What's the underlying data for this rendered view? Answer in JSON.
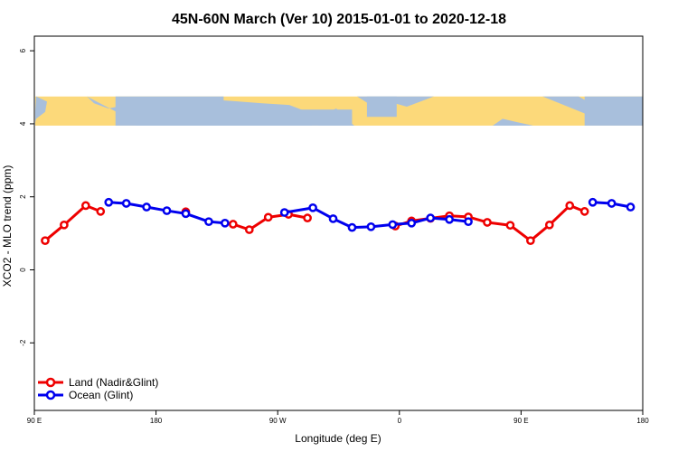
{
  "chart_data": {
    "type": "line",
    "title": "45N-60N March (Ver 10)   2015-01-01 to 2020-12-18",
    "xlabel": "Longitude (deg E)",
    "ylabel": "XCO2 - MLO trend (ppm)",
    "xlim": [
      90,
      540
    ],
    "ylim": [
      -3.85,
      6.4
    ],
    "x_ticks": [
      {
        "value": 90,
        "label": "90 E"
      },
      {
        "value": 180,
        "label": "180"
      },
      {
        "value": 270,
        "label": "90 W"
      },
      {
        "value": 360,
        "label": "0"
      },
      {
        "value": 450,
        "label": "90 E"
      },
      {
        "value": 540,
        "label": "180"
      }
    ],
    "y_ticks": [
      {
        "value": -2,
        "label": "-2"
      },
      {
        "value": 0,
        "label": "0"
      },
      {
        "value": 2,
        "label": "2"
      },
      {
        "value": 4,
        "label": "4"
      },
      {
        "value": 6,
        "label": "6"
      }
    ],
    "map_band": {
      "y_from": 3.95,
      "y_to": 4.75,
      "land_color": "#fcd97a",
      "ocean_color": "#a8bfdc"
    },
    "legend": {
      "position": "bottom-left"
    },
    "series": [
      {
        "name": "Land (Nadir&Glint)",
        "color": "#ee0000",
        "segments": [
          [
            [
              98,
              0.8
            ],
            [
              112,
              1.23
            ],
            [
              128,
              1.76
            ],
            [
              139,
              1.6
            ]
          ],
          [
            [
              202,
              1.59
            ]
          ],
          [
            [
              237,
              1.25
            ],
            [
              249,
              1.1
            ],
            [
              263,
              1.44
            ],
            [
              278,
              1.52
            ],
            [
              292,
              1.42
            ]
          ],
          [
            [
              357,
              1.2
            ],
            [
              369,
              1.34
            ],
            [
              383,
              1.41
            ],
            [
              397,
              1.48
            ],
            [
              411,
              1.45
            ],
            [
              425,
              1.3
            ],
            [
              442,
              1.22
            ],
            [
              457,
              0.8
            ],
            [
              471,
              1.23
            ],
            [
              486,
              1.76
            ],
            [
              497,
              1.6
            ]
          ]
        ]
      },
      {
        "name": "Ocean (Glint)",
        "color": "#0000ee",
        "segments": [
          [
            [
              145,
              1.85
            ],
            [
              158,
              1.82
            ],
            [
              173,
              1.72
            ],
            [
              188,
              1.62
            ],
            [
              202,
              1.54
            ],
            [
              219,
              1.32
            ],
            [
              231,
              1.28
            ]
          ],
          [
            [
              275,
              1.57
            ],
            [
              296,
              1.7
            ],
            [
              311,
              1.4
            ],
            [
              325,
              1.16
            ],
            [
              339,
              1.18
            ],
            [
              355,
              1.24
            ],
            [
              369,
              1.28
            ],
            [
              383,
              1.42
            ],
            [
              397,
              1.38
            ],
            [
              411,
              1.32
            ]
          ],
          [
            [
              503,
              1.85
            ],
            [
              517,
              1.82
            ],
            [
              531,
              1.72
            ]
          ]
        ]
      }
    ]
  }
}
